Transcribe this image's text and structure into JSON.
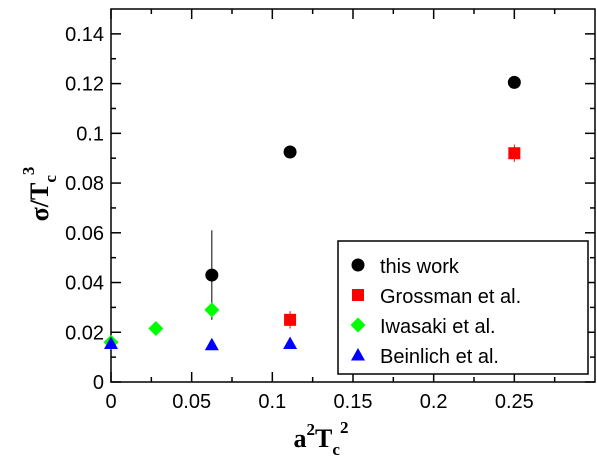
{
  "chart_data": {
    "type": "scatter",
    "xlabel": {
      "base": "a",
      "sup1": "2",
      "mid": "T",
      "sub": "c",
      "sup2": "2"
    },
    "ylabel": {
      "base": "σ/T",
      "sub": "c",
      "sup": "3"
    },
    "xlim": [
      0,
      0.3
    ],
    "ylim": [
      0,
      0.15
    ],
    "xticks": [
      {
        "value": 0,
        "label": "0"
      },
      {
        "value": 0.05,
        "label": "0.05"
      },
      {
        "value": 0.1,
        "label": "0.1"
      },
      {
        "value": 0.15,
        "label": "0.15"
      },
      {
        "value": 0.2,
        "label": "0.2"
      },
      {
        "value": 0.25,
        "label": "0.25"
      }
    ],
    "yticks": [
      {
        "value": 0,
        "label": "0"
      },
      {
        "value": 0.02,
        "label": "0.02"
      },
      {
        "value": 0.04,
        "label": "0.04"
      },
      {
        "value": 0.06,
        "label": "0.06"
      },
      {
        "value": 0.08,
        "label": "0.08"
      },
      {
        "value": 0.1,
        "label": "0.1"
      },
      {
        "value": 0.12,
        "label": "0.12"
      },
      {
        "value": 0.14,
        "label": "0.14"
      }
    ],
    "grid": false,
    "legend_position": "bottom-right",
    "series": [
      {
        "name": "this work",
        "marker": "circle",
        "color": "#000000",
        "points": [
          {
            "x": 0.0625,
            "y": 0.043,
            "err": 0.018
          },
          {
            "x": 0.111,
            "y": 0.0925,
            "err": 0
          },
          {
            "x": 0.25,
            "y": 0.1205,
            "err": 0
          }
        ]
      },
      {
        "name": "Grossman et al.",
        "marker": "square",
        "color": "#ff0000",
        "points": [
          {
            "x": 0.111,
            "y": 0.025,
            "err": 0.0035
          },
          {
            "x": 0.25,
            "y": 0.092,
            "err": 0.0035
          }
        ]
      },
      {
        "name": "Iwasaki et al.",
        "marker": "diamond",
        "color": "#00ff00",
        "points": [
          {
            "x": 0.0,
            "y": 0.016,
            "err": 0.001
          },
          {
            "x": 0.0278,
            "y": 0.0215,
            "err": 0.002
          },
          {
            "x": 0.0625,
            "y": 0.029,
            "err": 0.002
          }
        ]
      },
      {
        "name": "Beinlich et al.",
        "marker": "triangle",
        "color": "#0000ff",
        "points": [
          {
            "x": 0.0,
            "y": 0.0155,
            "err": 0
          },
          {
            "x": 0.0625,
            "y": 0.015,
            "err": 0
          },
          {
            "x": 0.111,
            "y": 0.0155,
            "err": 0
          }
        ]
      }
    ]
  }
}
